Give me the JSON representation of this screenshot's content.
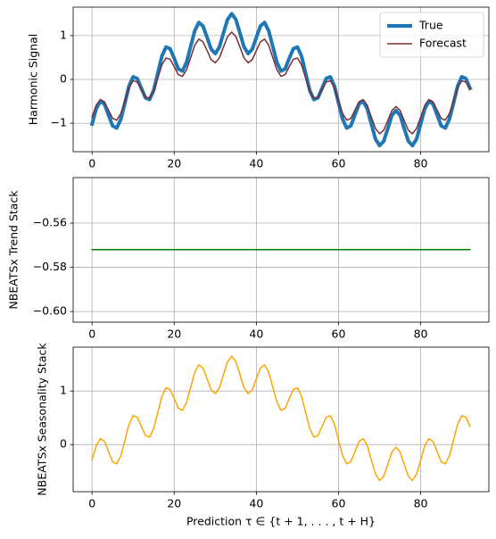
{
  "chart_data": [
    {
      "type": "line",
      "ylabel": "Harmonic Signal",
      "legend": "upper right",
      "grid": true,
      "x": [
        0,
        1,
        2,
        3,
        4,
        5,
        6,
        7,
        8,
        9,
        10,
        11,
        12,
        13,
        14,
        15,
        16,
        17,
        18,
        19,
        20,
        21,
        22,
        23,
        24,
        25,
        26,
        27,
        28,
        29,
        30,
        31,
        32,
        33,
        34,
        35,
        36,
        37,
        38,
        39,
        40,
        41,
        42,
        43,
        44,
        45,
        46,
        47,
        48,
        49,
        50,
        51,
        52,
        53,
        54,
        55,
        56,
        57,
        58,
        59,
        60,
        61,
        62,
        63,
        64,
        65,
        66,
        67,
        68,
        69,
        70,
        71,
        72,
        73,
        74,
        75,
        76,
        77,
        78,
        79,
        80,
        81,
        82,
        83,
        84,
        85,
        86,
        87,
        88,
        89,
        90,
        91,
        92
      ],
      "series": [
        {
          "name": "True",
          "color": "#1f77b4",
          "values": [
            -1.02,
            -0.67,
            -0.5,
            -0.56,
            -0.81,
            -1.06,
            -1.11,
            -0.91,
            -0.54,
            -0.15,
            0.06,
            0.02,
            -0.2,
            -0.42,
            -0.46,
            -0.25,
            0.14,
            0.53,
            0.74,
            0.7,
            0.48,
            0.24,
            0.19,
            0.39,
            0.75,
            1.11,
            1.3,
            1.22,
            0.96,
            0.69,
            0.59,
            0.74,
            1.06,
            1.37,
            1.5,
            1.37,
            1.06,
            0.74,
            0.59,
            0.69,
            0.96,
            1.22,
            1.3,
            1.11,
            0.75,
            0.39,
            0.19,
            0.24,
            0.48,
            0.7,
            0.74,
            0.53,
            0.14,
            -0.25,
            -0.46,
            -0.42,
            -0.2,
            0.02,
            0.06,
            -0.15,
            -0.54,
            -0.91,
            -1.11,
            -1.06,
            -0.81,
            -0.56,
            -0.5,
            -0.67,
            -1.02,
            -1.36,
            -1.51,
            -1.41,
            -1.12,
            -0.82,
            -0.71,
            -0.82,
            -1.12,
            -1.41,
            -1.51,
            -1.36,
            -1.02,
            -0.67,
            -0.5,
            -0.56,
            -0.81,
            -1.06,
            -1.11,
            -0.91,
            -0.54,
            -0.15,
            0.06,
            0.02,
            -0.2
          ]
        },
        {
          "name": "Forecast",
          "color": "#7b2d35",
          "values": [
            -0.86,
            -0.59,
            -0.46,
            -0.51,
            -0.7,
            -0.89,
            -0.93,
            -0.78,
            -0.49,
            -0.19,
            -0.03,
            -0.06,
            -0.23,
            -0.4,
            -0.43,
            -0.27,
            0.03,
            0.33,
            0.49,
            0.46,
            0.29,
            0.11,
            0.07,
            0.22,
            0.5,
            0.78,
            0.92,
            0.86,
            0.66,
            0.45,
            0.38,
            0.49,
            0.74,
            0.98,
            1.08,
            0.98,
            0.74,
            0.49,
            0.38,
            0.45,
            0.66,
            0.86,
            0.92,
            0.78,
            0.5,
            0.22,
            0.07,
            0.11,
            0.29,
            0.46,
            0.49,
            0.33,
            0.03,
            -0.27,
            -0.43,
            -0.4,
            -0.23,
            -0.06,
            -0.03,
            -0.19,
            -0.49,
            -0.78,
            -0.93,
            -0.89,
            -0.7,
            -0.51,
            -0.46,
            -0.59,
            -0.86,
            -1.12,
            -1.24,
            -1.16,
            -0.94,
            -0.71,
            -0.62,
            -0.71,
            -0.94,
            -1.16,
            -1.24,
            -1.12,
            -0.86,
            -0.59,
            -0.46,
            -0.51,
            -0.7,
            -0.89,
            -0.93,
            -0.78,
            -0.49,
            -0.19,
            -0.03,
            -0.06,
            -0.23
          ]
        }
      ],
      "xlim": [
        -4.6,
        96.6
      ],
      "xticks": [
        0,
        20,
        40,
        60,
        80
      ],
      "ylim": [
        -1.65,
        1.65
      ],
      "yticks": [
        {
          "value": -1,
          "label": "−1"
        },
        0,
        1
      ]
    },
    {
      "type": "line",
      "ylabel": "NBEATSx Trend Stack",
      "grid": true,
      "x": [
        0,
        1,
        2,
        3,
        4,
        5,
        6,
        7,
        8,
        9,
        10,
        11,
        12,
        13,
        14,
        15,
        16,
        17,
        18,
        19,
        20,
        21,
        22,
        23,
        24,
        25,
        26,
        27,
        28,
        29,
        30,
        31,
        32,
        33,
        34,
        35,
        36,
        37,
        38,
        39,
        40,
        41,
        42,
        43,
        44,
        45,
        46,
        47,
        48,
        49,
        50,
        51,
        52,
        53,
        54,
        55,
        56,
        57,
        58,
        59,
        60,
        61,
        62,
        63,
        64,
        65,
        66,
        67,
        68,
        69,
        70,
        71,
        72,
        73,
        74,
        75,
        76,
        77,
        78,
        79,
        80,
        81,
        82,
        83,
        84,
        85,
        86,
        87,
        88,
        89,
        90,
        91,
        92
      ],
      "series": [
        {
          "color": "#008000",
          "values": [
            -0.572,
            -0.572,
            -0.572,
            -0.572,
            -0.572,
            -0.572,
            -0.572,
            -0.572,
            -0.572,
            -0.572,
            -0.572,
            -0.572,
            -0.572,
            -0.572,
            -0.572,
            -0.572,
            -0.572,
            -0.572,
            -0.572,
            -0.572,
            -0.572,
            -0.572,
            -0.572,
            -0.572,
            -0.572,
            -0.572,
            -0.572,
            -0.572,
            -0.572,
            -0.572,
            -0.572,
            -0.572,
            -0.572,
            -0.572,
            -0.572,
            -0.572,
            -0.572,
            -0.572,
            -0.572,
            -0.572,
            -0.572,
            -0.572,
            -0.572,
            -0.572,
            -0.572,
            -0.572,
            -0.572,
            -0.572,
            -0.572,
            -0.572,
            -0.572,
            -0.572,
            -0.572,
            -0.572,
            -0.572,
            -0.572,
            -0.572,
            -0.572,
            -0.572,
            -0.572,
            -0.572,
            -0.572,
            -0.572,
            -0.572,
            -0.572,
            -0.572,
            -0.572,
            -0.572,
            -0.572,
            -0.572,
            -0.572,
            -0.572,
            -0.572,
            -0.572,
            -0.572,
            -0.572,
            -0.572,
            -0.572,
            -0.572,
            -0.572,
            -0.572,
            -0.572,
            -0.572,
            -0.572,
            -0.572,
            -0.572,
            -0.572,
            -0.572,
            -0.572,
            -0.572,
            -0.572,
            -0.572,
            -0.572
          ]
        }
      ],
      "xlim": [
        -4.6,
        96.6
      ],
      "xticks": [
        0,
        20,
        40,
        60,
        80
      ],
      "ylim": [
        -0.6048,
        -0.5394
      ],
      "yticks": [
        {
          "value": -0.6,
          "label": "−0.60"
        },
        {
          "value": -0.58,
          "label": "−0.58"
        },
        {
          "value": -0.56,
          "label": "−0.56"
        }
      ]
    },
    {
      "type": "line",
      "ylabel": "NBEATSx Seasonality Stack",
      "xlabel": "Prediction τ ∈ {t + 1, . . . , t + H}",
      "grid": true,
      "x": [
        0,
        1,
        2,
        3,
        4,
        5,
        6,
        7,
        8,
        9,
        10,
        11,
        12,
        13,
        14,
        15,
        16,
        17,
        18,
        19,
        20,
        21,
        22,
        23,
        24,
        25,
        26,
        27,
        28,
        29,
        30,
        31,
        32,
        33,
        34,
        35,
        36,
        37,
        38,
        39,
        40,
        41,
        42,
        43,
        44,
        45,
        46,
        47,
        48,
        49,
        50,
        51,
        52,
        53,
        54,
        55,
        56,
        57,
        58,
        59,
        60,
        61,
        62,
        63,
        64,
        65,
        66,
        67,
        68,
        69,
        70,
        71,
        72,
        73,
        74,
        75,
        76,
        77,
        78,
        79,
        80,
        81,
        82,
        83,
        84,
        85,
        86,
        87,
        88,
        89,
        90,
        91,
        92
      ],
      "series": [
        {
          "color": "#ffa500",
          "values": [
            -0.29,
            -0.02,
            0.11,
            0.06,
            -0.13,
            -0.32,
            -0.36,
            -0.21,
            0.08,
            0.38,
            0.54,
            0.51,
            0.34,
            0.17,
            0.14,
            0.3,
            0.6,
            0.9,
            1.06,
            1.03,
            0.86,
            0.68,
            0.64,
            0.79,
            1.07,
            1.35,
            1.49,
            1.43,
            1.23,
            1.02,
            0.95,
            1.06,
            1.31,
            1.55,
            1.65,
            1.55,
            1.31,
            1.06,
            0.95,
            1.02,
            1.23,
            1.43,
            1.49,
            1.35,
            1.07,
            0.79,
            0.64,
            0.68,
            0.86,
            1.03,
            1.06,
            0.9,
            0.6,
            0.3,
            0.14,
            0.17,
            0.34,
            0.51,
            0.54,
            0.38,
            0.08,
            -0.21,
            -0.36,
            -0.32,
            -0.13,
            0.06,
            0.11,
            -0.02,
            -0.29,
            -0.55,
            -0.67,
            -0.59,
            -0.37,
            -0.14,
            -0.05,
            -0.14,
            -0.37,
            -0.59,
            -0.67,
            -0.55,
            -0.29,
            -0.02,
            0.11,
            0.06,
            -0.13,
            -0.32,
            -0.36,
            -0.21,
            0.08,
            0.38,
            0.54,
            0.51,
            0.34
          ]
        }
      ],
      "xlim": [
        -4.6,
        96.6
      ],
      "xticks": [
        0,
        20,
        40,
        60,
        80
      ],
      "ylim": [
        -0.88,
        1.82
      ],
      "yticks": [
        0,
        1
      ]
    }
  ]
}
